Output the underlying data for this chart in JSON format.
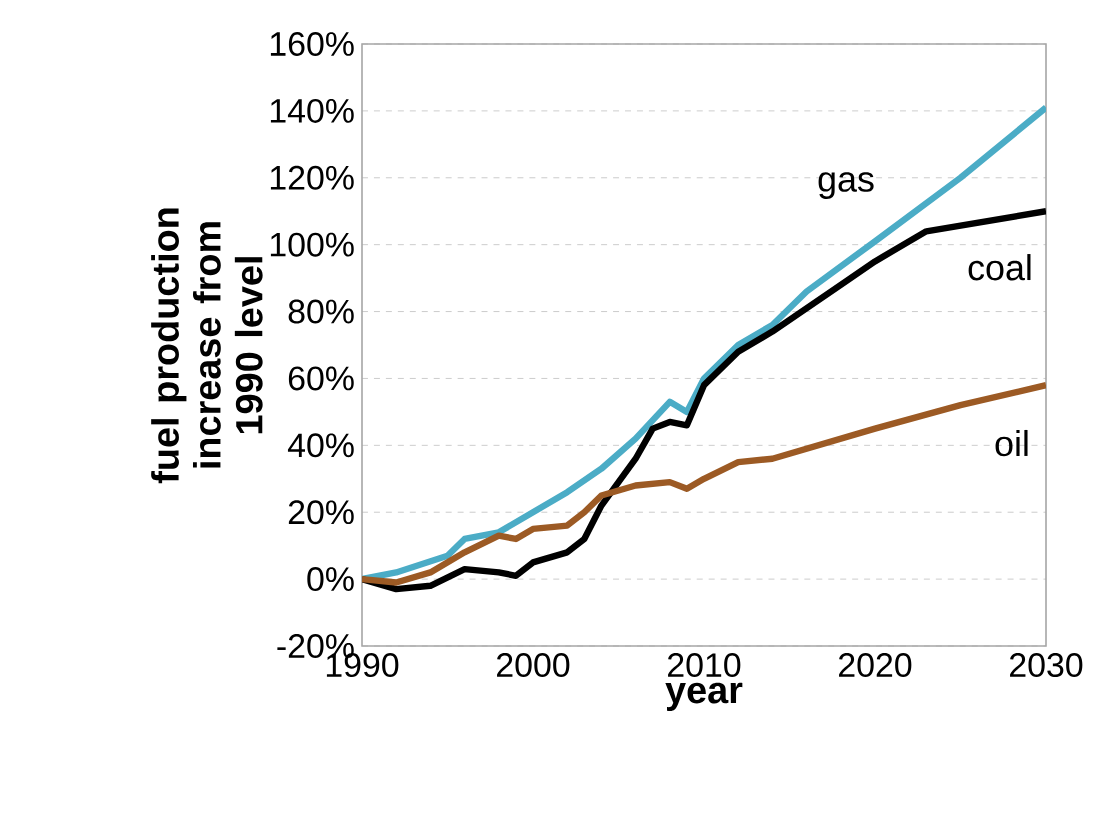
{
  "chart_data": {
    "type": "line",
    "xlabel": "year",
    "ylabel": "fuel production increase from 1990 level",
    "xlim": [
      1990,
      2030
    ],
    "xticks": [
      1990,
      2000,
      2010,
      2020,
      2030
    ],
    "ylim": [
      -20,
      160
    ],
    "yticks": [
      {
        "value": -20,
        "label": "-20%"
      },
      {
        "value": 0,
        "label": "0%"
      },
      {
        "value": 20,
        "label": "20%"
      },
      {
        "value": 40,
        "label": "40%"
      },
      {
        "value": 60,
        "label": "60%"
      },
      {
        "value": 80,
        "label": "80%"
      },
      {
        "value": 100,
        "label": "100%"
      },
      {
        "value": 120,
        "label": "120%"
      },
      {
        "value": 140,
        "label": "140%"
      },
      {
        "value": 160,
        "label": "160%"
      }
    ],
    "grid": "y",
    "legend": false,
    "marker": "none",
    "line_style": "solid",
    "series": [
      {
        "name": "gas",
        "color": "#4bacc6",
        "x": [
          1990,
          1992,
          1995,
          1996,
          1998,
          2000,
          2002,
          2004,
          2006,
          2008,
          2009,
          2010,
          2012,
          2014,
          2016,
          2020,
          2025,
          2030
        ],
        "values": [
          0,
          2,
          7,
          12,
          14,
          20,
          26,
          33,
          42,
          53,
          50,
          60,
          70,
          76,
          86,
          101,
          120,
          141
        ]
      },
      {
        "name": "coal",
        "color": "#000000",
        "x": [
          1990,
          1992,
          1994,
          1996,
          1998,
          1999,
          2000,
          2002,
          2003,
          2004,
          2006,
          2007,
          2008,
          2009,
          2010,
          2012,
          2014,
          2018,
          2020,
          2023,
          2030
        ],
        "values": [
          0,
          -3,
          -2,
          3,
          2,
          1,
          5,
          8,
          12,
          22,
          36,
          45,
          47,
          46,
          58,
          68,
          74,
          88,
          95,
          104,
          110
        ]
      },
      {
        "name": "oil",
        "color": "#9c5a24",
        "x": [
          1990,
          1992,
          1994,
          1996,
          1998,
          1999,
          2000,
          2002,
          2003,
          2004,
          2006,
          2008,
          2009,
          2010,
          2012,
          2014,
          2020,
          2025,
          2030
        ],
        "values": [
          0,
          -1,
          2,
          8,
          13,
          12,
          15,
          16,
          20,
          25,
          28,
          29,
          27,
          30,
          35,
          36,
          45,
          52,
          58
        ]
      }
    ]
  }
}
